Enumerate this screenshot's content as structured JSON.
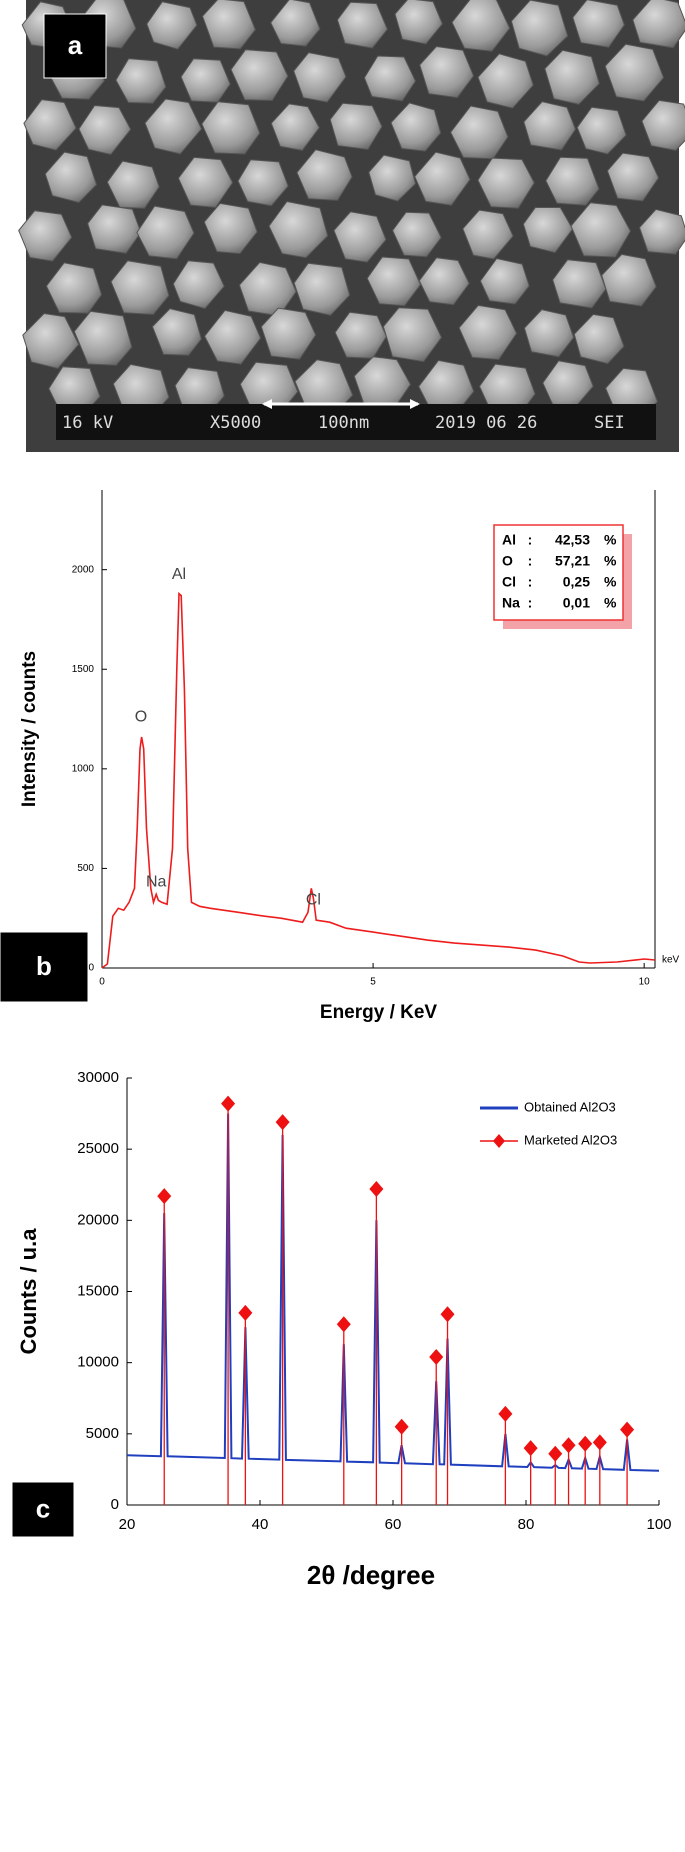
{
  "chart_data": [
    {
      "type": "image",
      "panel_label": "a",
      "info_bar": [
        "16 kV",
        "X5000",
        "100nm",
        "2019 06 26",
        "SEI"
      ]
    },
    {
      "type": "line",
      "panel_label": "b",
      "color": "#ee1c1c",
      "x": [
        0,
        0.1,
        0.2,
        0.3,
        0.4,
        0.5,
        0.6,
        0.65,
        0.7,
        0.73,
        0.77,
        0.82,
        0.9,
        0.95,
        1.0,
        1.04,
        1.1,
        1.2,
        1.3,
        1.38,
        1.42,
        1.46,
        1.52,
        1.58,
        1.65,
        1.8,
        2.0,
        2.5,
        3.0,
        3.3,
        3.5,
        3.7,
        3.8,
        3.86,
        3.9,
        3.95,
        4.2,
        4.5,
        5,
        5.5,
        6,
        6.5,
        7,
        7.5,
        8,
        8.5,
        8.8,
        9,
        9.5,
        10,
        10.2
      ],
      "values": [
        0,
        20,
        260,
        300,
        290,
        330,
        400,
        700,
        1100,
        1160,
        1100,
        700,
        400,
        330,
        370,
        340,
        330,
        320,
        600,
        1500,
        1880,
        1870,
        1400,
        600,
        330,
        310,
        300,
        280,
        260,
        250,
        240,
        230,
        280,
        400,
        350,
        240,
        230,
        200,
        180,
        160,
        140,
        125,
        115,
        105,
        90,
        60,
        30,
        25,
        30,
        45,
        40
      ],
      "xlim": [
        0,
        10.2
      ],
      "ylim": [
        0,
        2400
      ],
      "xticks": [
        0,
        5,
        10
      ],
      "yticks": [
        0,
        500,
        1000,
        1500,
        2000
      ],
      "xlabel": "Energy / KeV",
      "ylabel": "Intensity / counts",
      "x_unit_label": "keV",
      "annotations": [
        "O",
        "Na",
        "Al",
        "Cl"
      ],
      "inset_table": [
        [
          "Al",
          ":",
          "42,53",
          "%"
        ],
        [
          "O",
          ":",
          "57,21",
          "%"
        ],
        [
          "Cl",
          ":",
          "0,25",
          "%"
        ],
        [
          "Na",
          ":",
          "0,01",
          "%"
        ]
      ]
    },
    {
      "type": "line",
      "panel_label": "c",
      "xlim": [
        20,
        100
      ],
      "ylim": [
        0,
        30000
      ],
      "xticks": [
        20,
        40,
        60,
        80,
        100
      ],
      "yticks": [
        0,
        5000,
        10000,
        15000,
        20000,
        25000,
        30000
      ],
      "xlabel": "2θ /degree",
      "ylabel": "Counts / u.a",
      "series": [
        {
          "name": "Obtained Al2O3",
          "color": "#1f3fbf",
          "x": [
            20,
            25.1,
            25.6,
            26.1,
            34.7,
            35.2,
            35.7,
            37.3,
            37.8,
            38.3,
            42.9,
            43.4,
            43.9,
            52.1,
            52.6,
            53.1,
            57.0,
            57.5,
            58.0,
            60.8,
            61.3,
            61.8,
            66.0,
            66.5,
            67.0,
            67.7,
            68.2,
            68.7,
            76.4,
            76.9,
            77.4,
            80.2,
            80.7,
            81.2,
            83.9,
            84.4,
            84.9,
            85.9,
            86.4,
            86.9,
            88.4,
            88.9,
            89.4,
            90.6,
            91.1,
            91.6,
            94.7,
            95.2,
            95.7,
            100
          ],
          "values": [
            3500,
            3430,
            20500,
            3420,
            3300,
            27500,
            3290,
            3260,
            12500,
            3250,
            3190,
            26000,
            3170,
            3060,
            11300,
            3050,
            3000,
            20000,
            2980,
            2940,
            4200,
            2930,
            2870,
            8700,
            2860,
            2850,
            11700,
            2840,
            2720,
            5000,
            2710,
            2670,
            3000,
            2660,
            2620,
            2800,
            2610,
            2590,
            3200,
            2580,
            2560,
            3300,
            2550,
            2530,
            3400,
            2520,
            2470,
            4600,
            2460,
            2400
          ]
        },
        {
          "name": "Marketed Al2O3",
          "color": "#ee1111",
          "style": "stem",
          "x": [
            25.6,
            35.2,
            37.8,
            43.4,
            52.6,
            57.5,
            61.3,
            66.5,
            68.2,
            76.9,
            80.7,
            84.4,
            86.4,
            88.9,
            91.1,
            95.2
          ],
          "values": [
            21700,
            28200,
            13500,
            26900,
            12700,
            22200,
            5500,
            10400,
            13400,
            6400,
            4000,
            3600,
            4200,
            4300,
            4400,
            5300
          ]
        }
      ]
    }
  ]
}
